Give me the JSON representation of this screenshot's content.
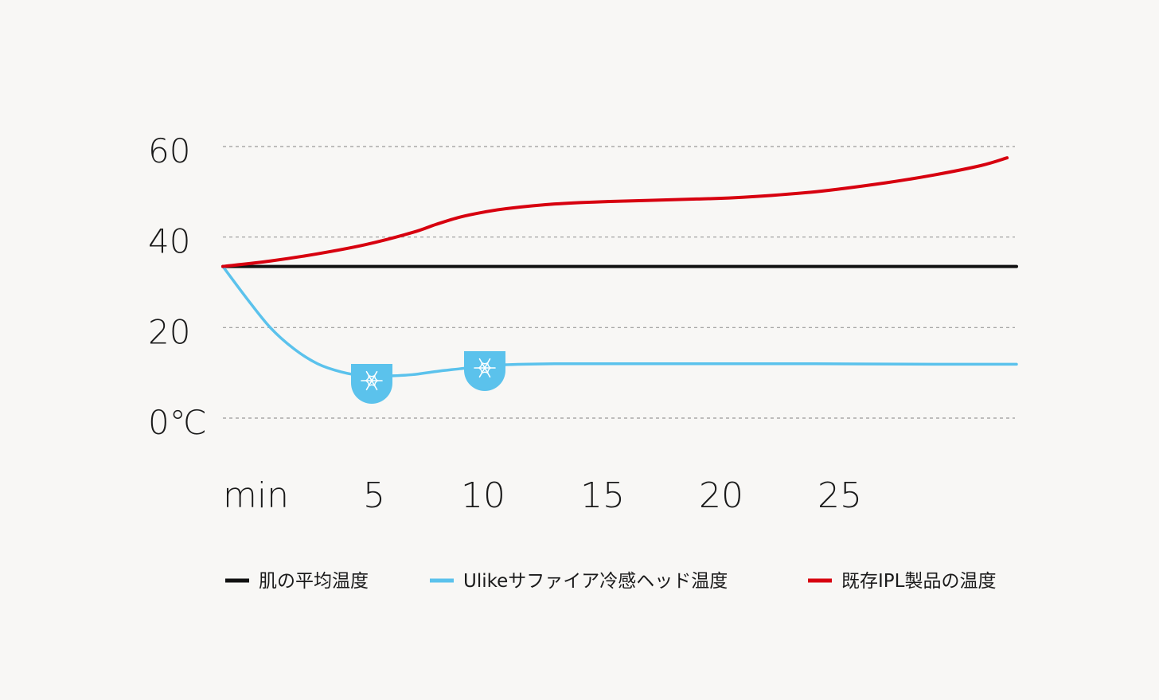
{
  "chart_data": {
    "type": "line",
    "title": "",
    "xlabel": "",
    "ylabel": "",
    "y_unit_label": "0℃",
    "x_unit_label": "min",
    "xlim": [
      0,
      33.5
    ],
    "ylim": [
      0,
      60
    ],
    "y_ticks": [
      0,
      20,
      40,
      60
    ],
    "y_tick_labels": [
      "0℃",
      "20",
      "40",
      "60"
    ],
    "x_ticks": [
      5,
      10,
      15,
      20,
      25
    ],
    "x_tick_labels": [
      "5",
      "10",
      "15",
      "20",
      "25"
    ],
    "grid": "horizontal-dashed",
    "legend_position": "bottom",
    "series": [
      {
        "name": "肌の平均温度",
        "color": "#111111",
        "x": [
          0,
          33.5
        ],
        "y": [
          33.5,
          33.5
        ]
      },
      {
        "name": "Ulikeサファイア冷感ヘッド温度",
        "color": "#5bc2ec",
        "x": [
          0,
          1,
          2,
          3,
          4,
          5,
          6,
          7,
          8,
          9,
          10,
          11,
          12,
          14,
          16,
          20,
          25,
          30,
          33.5
        ],
        "y": [
          33.5,
          26.5,
          20,
          15.3,
          12,
          10.2,
          9.3,
          9.3,
          9.6,
          10.3,
          10.9,
          11.5,
          11.8,
          12.0,
          12.0,
          12.0,
          12.0,
          11.9,
          11.9
        ]
      },
      {
        "name": "既存IPL製品の温度",
        "color": "#d7000f",
        "x": [
          0,
          2,
          4,
          6,
          8,
          9,
          10,
          11,
          12,
          14,
          16,
          20,
          22,
          25,
          28,
          30,
          32,
          33.1
        ],
        "y": [
          33.5,
          34.7,
          36.3,
          38.3,
          41,
          42.8,
          44.4,
          45.5,
          46.3,
          47.3,
          47.8,
          48.4,
          48.8,
          50,
          52,
          53.7,
          55.8,
          57.5
        ]
      }
    ],
    "annotations": [
      {
        "type": "cooling-badge",
        "icon": "snowflake-icon",
        "x": 6.2,
        "y": 9.3
      },
      {
        "type": "cooling-badge",
        "icon": "snowflake-icon",
        "x": 11.0,
        "y": 12.1
      }
    ]
  }
}
